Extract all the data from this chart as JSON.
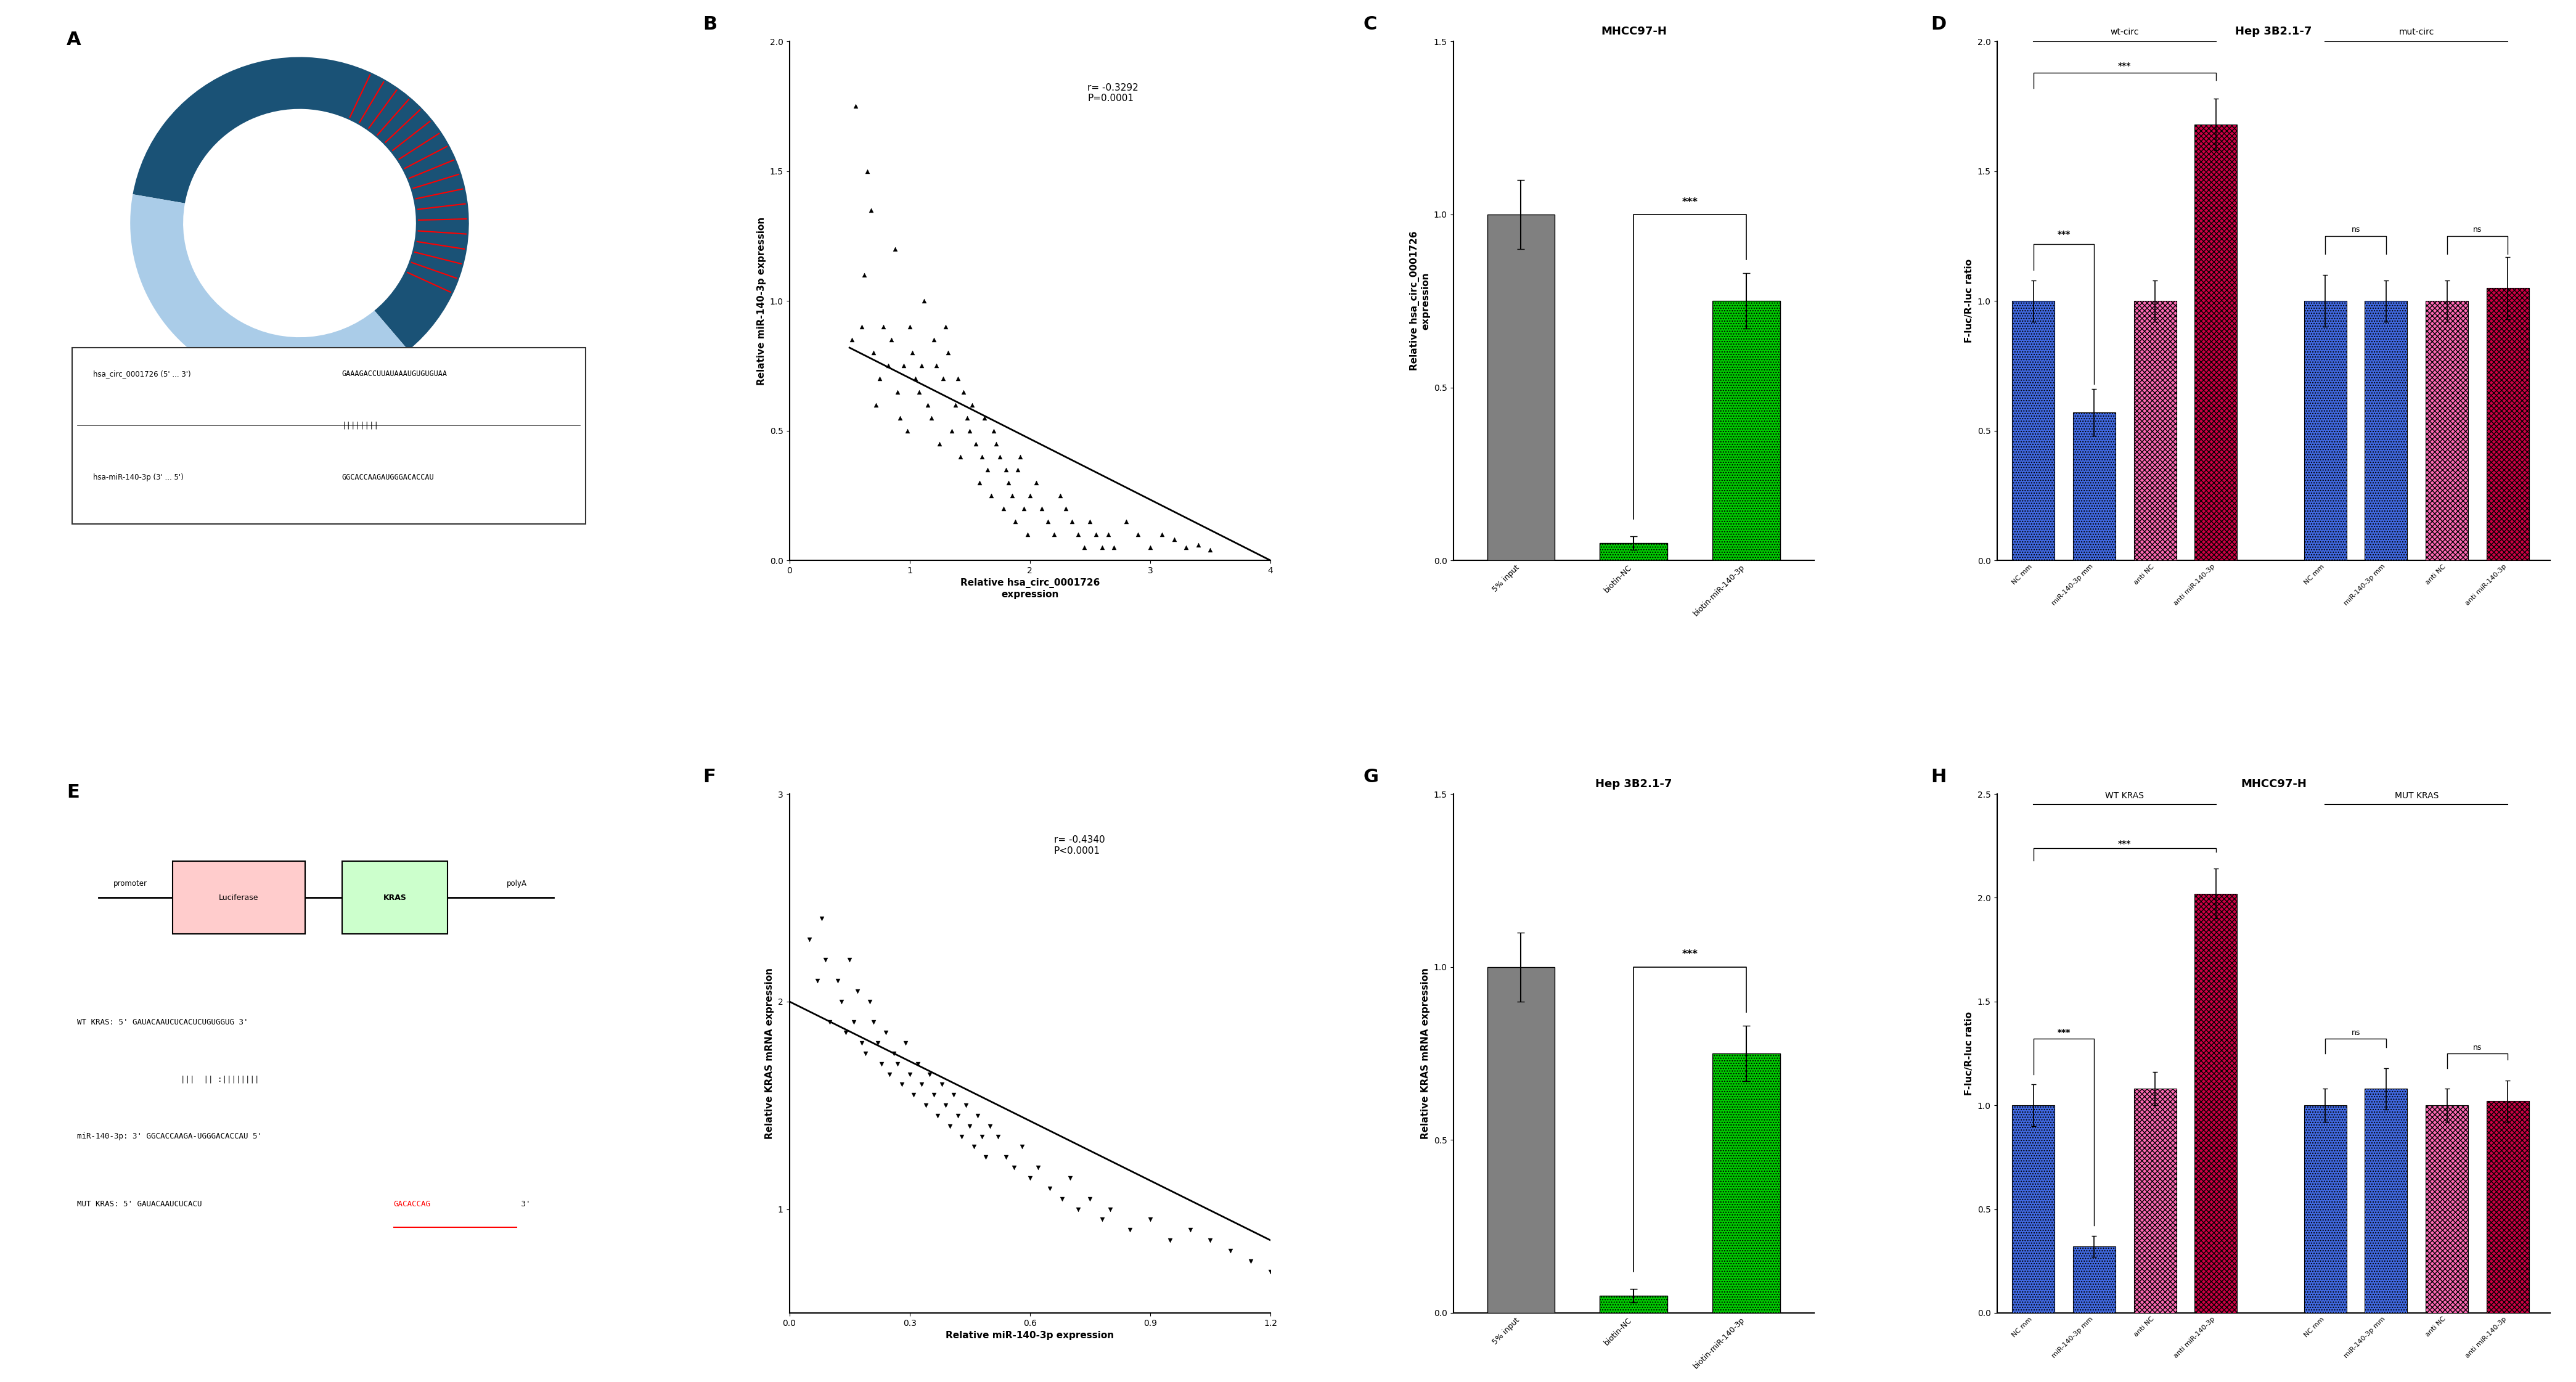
{
  "panel_B": {
    "title": "B",
    "xlabel": "Relative hsa_circ_0001726\nexpression",
    "ylabel": "Relative miR-140-3p expression",
    "annotation": "r= -0.3292\nP=0.0001",
    "xlim": [
      0,
      4
    ],
    "ylim": [
      0,
      2.0
    ],
    "xticks": [
      0,
      1,
      2,
      3,
      4
    ],
    "yticks": [
      0.0,
      0.5,
      1.0,
      1.5,
      2.0
    ],
    "scatter_x": [
      0.52,
      0.55,
      0.6,
      0.62,
      0.65,
      0.68,
      0.7,
      0.72,
      0.75,
      0.78,
      0.82,
      0.85,
      0.88,
      0.9,
      0.92,
      0.95,
      0.98,
      1.0,
      1.02,
      1.05,
      1.08,
      1.1,
      1.12,
      1.15,
      1.18,
      1.2,
      1.22,
      1.25,
      1.28,
      1.3,
      1.32,
      1.35,
      1.38,
      1.4,
      1.42,
      1.45,
      1.48,
      1.5,
      1.52,
      1.55,
      1.58,
      1.6,
      1.62,
      1.65,
      1.68,
      1.7,
      1.72,
      1.75,
      1.78,
      1.8,
      1.82,
      1.85,
      1.88,
      1.9,
      1.92,
      1.95,
      1.98,
      2.0,
      2.05,
      2.1,
      2.15,
      2.2,
      2.25,
      2.3,
      2.35,
      2.4,
      2.45,
      2.5,
      2.55,
      2.6,
      2.65,
      2.7,
      2.8,
      2.9,
      3.0,
      3.1,
      3.2,
      3.3,
      3.4,
      3.5
    ],
    "scatter_y": [
      0.85,
      1.75,
      0.9,
      1.1,
      1.5,
      1.35,
      0.8,
      0.6,
      0.7,
      0.9,
      0.75,
      0.85,
      1.2,
      0.65,
      0.55,
      0.75,
      0.5,
      0.9,
      0.8,
      0.7,
      0.65,
      0.75,
      1.0,
      0.6,
      0.55,
      0.85,
      0.75,
      0.45,
      0.7,
      0.9,
      0.8,
      0.5,
      0.6,
      0.7,
      0.4,
      0.65,
      0.55,
      0.5,
      0.6,
      0.45,
      0.3,
      0.4,
      0.55,
      0.35,
      0.25,
      0.5,
      0.45,
      0.4,
      0.2,
      0.35,
      0.3,
      0.25,
      0.15,
      0.35,
      0.4,
      0.2,
      0.1,
      0.25,
      0.3,
      0.2,
      0.15,
      0.1,
      0.25,
      0.2,
      0.15,
      0.1,
      0.05,
      0.15,
      0.1,
      0.05,
      0.1,
      0.05,
      0.15,
      0.1,
      0.05,
      0.1,
      0.08,
      0.05,
      0.06,
      0.04
    ],
    "line_x": [
      0.5,
      4.0
    ],
    "line_y": [
      0.82,
      0.0
    ]
  },
  "panel_C": {
    "title": "C",
    "subtitle": "MHCC97-H",
    "ylabel": "Relative hsa_circ_0001726\nexpression",
    "categories": [
      "5% input",
      "biotin-NC",
      "biotin-miR-140-3p"
    ],
    "values": [
      1.0,
      0.05,
      0.75
    ],
    "errors": [
      0.1,
      0.02,
      0.08
    ],
    "colors": [
      "#808080",
      "#00cc00",
      "#00cc00"
    ],
    "ylim": [
      0,
      1.5
    ],
    "yticks": [
      0.0,
      0.5,
      1.0,
      1.5
    ]
  },
  "panel_D": {
    "title": "D",
    "subtitle": "Hep 3B2.1-7",
    "ylabel": "F-luc/R-luc ratio",
    "categories": [
      "NC mm",
      "miR-140-3p mm",
      "anti NC",
      "anti miR-140-3p",
      "NC mm",
      "miR-140-3p mm",
      "anti NC",
      "anti miR-140-3p"
    ],
    "values": [
      1.0,
      0.57,
      1.0,
      1.68,
      1.0,
      1.0,
      1.0,
      1.05
    ],
    "errors": [
      0.08,
      0.09,
      0.08,
      0.1,
      0.1,
      0.08,
      0.08,
      0.12
    ],
    "colors": [
      "#4169e1",
      "#4169e1",
      "#ff69b4",
      "#cc0044",
      "#4169e1",
      "#4169e1",
      "#ff69b4",
      "#cc0044"
    ],
    "group_labels": [
      "wt-circ",
      "mut-circ"
    ],
    "ylim": [
      0,
      2.0
    ],
    "yticks": [
      0.0,
      0.5,
      1.0,
      1.5,
      2.0
    ]
  },
  "panel_F": {
    "title": "F",
    "xlabel": "Relative miR-140-3p expression",
    "ylabel": "Relative KRAS mRNA expression",
    "annotation": "r= -0.4340\nP<0.0001",
    "xlim": [
      0,
      1.2
    ],
    "ylim": [
      0.5,
      3.0
    ],
    "xticks": [
      0.0,
      0.3,
      0.6,
      0.9,
      1.2
    ],
    "yticks": [
      1,
      2,
      3
    ],
    "scatter_x": [
      0.05,
      0.07,
      0.08,
      0.09,
      0.1,
      0.12,
      0.13,
      0.14,
      0.15,
      0.16,
      0.17,
      0.18,
      0.19,
      0.2,
      0.21,
      0.22,
      0.23,
      0.24,
      0.25,
      0.26,
      0.27,
      0.28,
      0.29,
      0.3,
      0.31,
      0.32,
      0.33,
      0.34,
      0.35,
      0.36,
      0.37,
      0.38,
      0.39,
      0.4,
      0.41,
      0.42,
      0.43,
      0.44,
      0.45,
      0.46,
      0.47,
      0.48,
      0.49,
      0.5,
      0.52,
      0.54,
      0.56,
      0.58,
      0.6,
      0.62,
      0.65,
      0.68,
      0.7,
      0.72,
      0.75,
      0.78,
      0.8,
      0.85,
      0.9,
      0.95,
      1.0,
      1.05,
      1.1,
      1.15,
      1.2
    ],
    "scatter_y": [
      2.3,
      2.1,
      2.4,
      2.2,
      1.9,
      2.1,
      2.0,
      1.85,
      2.2,
      1.9,
      2.05,
      1.8,
      1.75,
      2.0,
      1.9,
      1.8,
      1.7,
      1.85,
      1.65,
      1.75,
      1.7,
      1.6,
      1.8,
      1.65,
      1.55,
      1.7,
      1.6,
      1.5,
      1.65,
      1.55,
      1.45,
      1.6,
      1.5,
      1.4,
      1.55,
      1.45,
      1.35,
      1.5,
      1.4,
      1.3,
      1.45,
      1.35,
      1.25,
      1.4,
      1.35,
      1.25,
      1.2,
      1.3,
      1.15,
      1.2,
      1.1,
      1.05,
      1.15,
      1.0,
      1.05,
      0.95,
      1.0,
      0.9,
      0.95,
      0.85,
      0.9,
      0.85,
      0.8,
      0.75,
      0.7
    ],
    "line_x": [
      0.0,
      1.2
    ],
    "line_y": [
      2.0,
      0.85
    ]
  },
  "panel_G": {
    "title": "G",
    "subtitle": "Hep 3B2.1-7",
    "ylabel": "Relative KRAS mRNA expression",
    "categories": [
      "5% input",
      "biotin-NC",
      "biotin-miR-140-3p"
    ],
    "values": [
      1.0,
      0.05,
      0.75
    ],
    "errors": [
      0.1,
      0.02,
      0.08
    ],
    "colors": [
      "#808080",
      "#00cc00",
      "#00cc00"
    ],
    "ylim": [
      0,
      1.5
    ],
    "yticks": [
      0.0,
      0.5,
      1.0,
      1.5
    ]
  },
  "panel_H": {
    "title": "H",
    "subtitle": "MHCC97-H",
    "ylabel": "F-luc/R-luc ratio",
    "categories": [
      "NC mm",
      "miR-140-3p mm",
      "anti NC",
      "anti miR-140-3p",
      "NC mm",
      "miR-140-3p mm",
      "anti NC",
      "anti miR-140-3p"
    ],
    "values": [
      1.0,
      0.32,
      1.08,
      2.02,
      1.0,
      1.08,
      1.0,
      1.02
    ],
    "errors": [
      0.1,
      0.05,
      0.08,
      0.12,
      0.08,
      0.1,
      0.08,
      0.1
    ],
    "colors": [
      "#4169e1",
      "#4169e1",
      "#ff69b4",
      "#cc0044",
      "#4169e1",
      "#4169e1",
      "#ff69b4",
      "#cc0044"
    ],
    "group_labels": [
      "WT KRAS",
      "MUT KRAS"
    ],
    "ylim": [
      0,
      2.5
    ],
    "yticks": [
      0.0,
      0.5,
      1.0,
      1.5,
      2.0,
      2.5
    ]
  },
  "bg_color": "#ffffff",
  "text_color": "#000000",
  "font_size": 11,
  "axis_font_size": 10,
  "label_font_size": 14,
  "title_font_size": 22
}
